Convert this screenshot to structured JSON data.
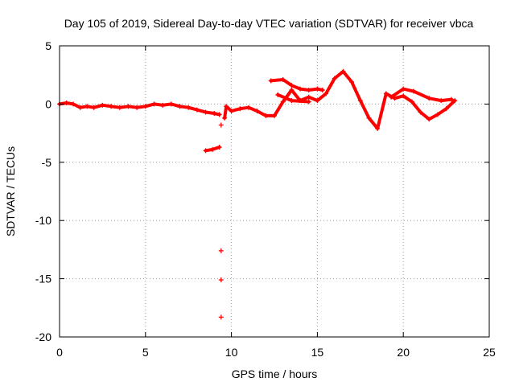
{
  "chart_data": {
    "type": "scatter",
    "title": "Day 105 of 2019, Sidereal Day-to-day VTEC variation (SDTVAR) for receiver vbca",
    "xlabel": "GPS time / hours",
    "ylabel": "SDTVAR / TECUs",
    "xlim": [
      0,
      25
    ],
    "ylim": [
      -20,
      5
    ],
    "xticks": [
      0,
      5,
      10,
      15,
      20,
      25
    ],
    "yticks": [
      -20,
      -15,
      -10,
      -5,
      0,
      5
    ],
    "grid": true,
    "marker": "+",
    "color": "#ff0000",
    "series": [
      {
        "name": "SDTVAR",
        "values": [
          [
            0.0,
            0.0
          ],
          [
            0.4,
            0.1
          ],
          [
            0.8,
            0.0
          ],
          [
            1.2,
            -0.3
          ],
          [
            1.6,
            -0.2
          ],
          [
            2.0,
            -0.3
          ],
          [
            2.5,
            -0.1
          ],
          [
            3.0,
            -0.2
          ],
          [
            3.5,
            -0.3
          ],
          [
            4.0,
            -0.2
          ],
          [
            4.5,
            -0.3
          ],
          [
            5.0,
            -0.2
          ],
          [
            5.5,
            0.0
          ],
          [
            6.0,
            -0.1
          ],
          [
            6.5,
            0.0
          ],
          [
            7.0,
            -0.2
          ],
          [
            7.5,
            -0.3
          ],
          [
            8.0,
            -0.5
          ],
          [
            8.5,
            -0.7
          ],
          [
            9.0,
            -0.8
          ],
          [
            9.3,
            -0.9
          ],
          [
            8.5,
            -4.0
          ],
          [
            8.9,
            -3.9
          ],
          [
            9.3,
            -3.7
          ],
          [
            9.4,
            -1.8
          ],
          [
            9.6,
            -1.2
          ],
          [
            9.7,
            -0.2
          ],
          [
            10.0,
            -0.6
          ],
          [
            10.5,
            -0.4
          ],
          [
            11.0,
            -0.3
          ],
          [
            11.5,
            -0.6
          ],
          [
            12.0,
            -1.0
          ],
          [
            12.5,
            -1.0
          ],
          [
            13.0,
            0.2
          ],
          [
            13.5,
            1.2
          ],
          [
            14.0,
            0.3
          ],
          [
            14.5,
            0.6
          ],
          [
            15.0,
            0.3
          ],
          [
            15.5,
            0.9
          ],
          [
            16.0,
            2.2
          ],
          [
            16.5,
            2.8
          ],
          [
            17.0,
            1.9
          ],
          [
            17.5,
            0.3
          ],
          [
            18.0,
            -1.2
          ],
          [
            18.5,
            -2.1
          ],
          [
            19.0,
            0.9
          ],
          [
            19.5,
            0.5
          ],
          [
            20.0,
            0.7
          ],
          [
            20.5,
            0.2
          ],
          [
            21.0,
            -0.7
          ],
          [
            21.5,
            -1.3
          ],
          [
            22.0,
            -0.9
          ],
          [
            22.5,
            -0.4
          ],
          [
            23.0,
            0.3
          ],
          [
            12.3,
            2.0
          ],
          [
            13.0,
            2.1
          ],
          [
            13.5,
            1.6
          ],
          [
            14.0,
            1.3
          ],
          [
            14.5,
            1.2
          ],
          [
            15.0,
            1.3
          ],
          [
            15.3,
            1.2
          ],
          [
            12.7,
            0.8
          ],
          [
            13.5,
            0.3
          ],
          [
            14.5,
            0.2
          ],
          [
            19.3,
            0.6
          ],
          [
            20.0,
            1.3
          ],
          [
            20.6,
            1.1
          ],
          [
            21.5,
            0.5
          ],
          [
            22.2,
            0.3
          ],
          [
            22.8,
            0.4
          ],
          [
            9.4,
            -12.6
          ],
          [
            9.4,
            -15.1
          ],
          [
            9.4,
            -18.3
          ]
        ]
      }
    ]
  }
}
